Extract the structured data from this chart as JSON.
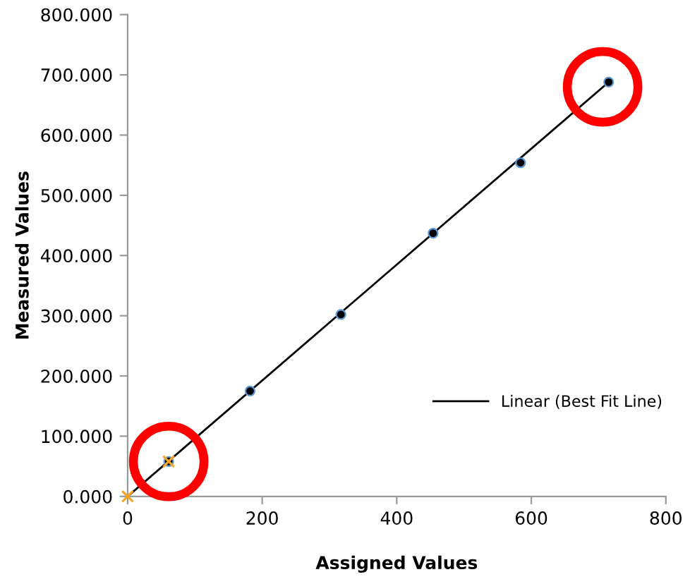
{
  "chart_data": {
    "type": "scatter",
    "xlabel": "Assigned Values",
    "ylabel": "Measured Values",
    "xlim": [
      0,
      800
    ],
    "xticks": [
      0,
      200,
      400,
      600,
      800
    ],
    "ylim": [
      0,
      800
    ],
    "yticks": [
      {
        "value": 0,
        "label": "0.000"
      },
      {
        "value": 100,
        "label": "100.000"
      },
      {
        "value": 200,
        "label": "200.000"
      },
      {
        "value": 300,
        "label": "300.000"
      },
      {
        "value": 400,
        "label": "400.000"
      },
      {
        "value": 500,
        "label": "500.000"
      },
      {
        "value": 600,
        "label": "600.000"
      },
      {
        "value": 700,
        "label": "700.000"
      },
      {
        "value": 800,
        "label": "800.000"
      }
    ],
    "grid": false,
    "legend": "right",
    "series": [
      {
        "name": "Linear (Best Fit Line)",
        "type": "line",
        "color": "#000000",
        "marker": "none",
        "line_style": "solid",
        "x": [
          0,
          715
        ],
        "values": [
          0,
          688
        ]
      },
      {
        "color": "#000000",
        "marker": "circle",
        "x": [
          61,
          182,
          317,
          454,
          584,
          715
        ],
        "values": [
          58,
          175,
          302,
          437,
          554,
          688
        ]
      },
      {
        "color": "#f5a623",
        "marker": "cross",
        "x": [
          0,
          61
        ],
        "values": [
          0,
          58
        ]
      },
      {
        "type": "bubble",
        "color": "#ff0000",
        "x": [
          61,
          706
        ],
        "values": [
          58,
          680
        ],
        "sizes": [
          1,
          1
        ]
      }
    ]
  }
}
